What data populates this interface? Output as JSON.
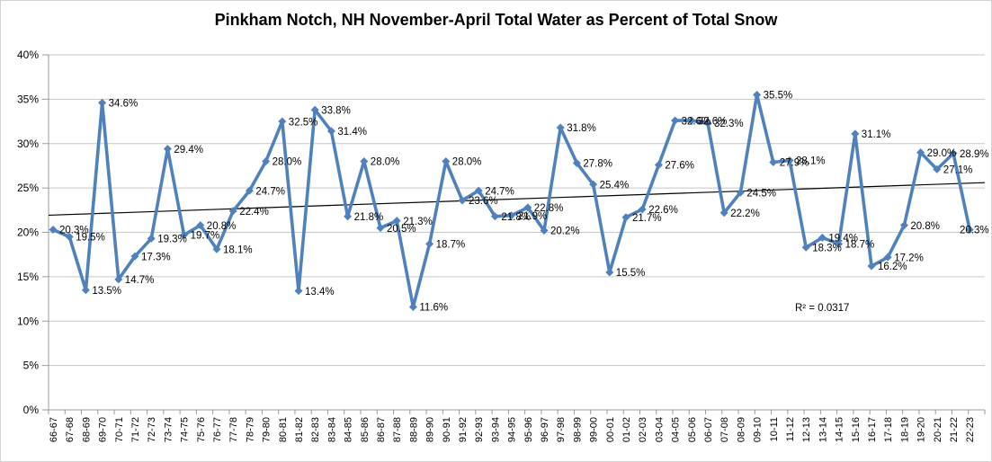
{
  "chart_data": {
    "type": "line",
    "title": "Pinkham Notch, NH November-April Total Water as Percent of Total Snow",
    "xlabel": "",
    "ylabel": "",
    "legend": "none",
    "grid": "horizontal",
    "ylim": [
      0,
      40
    ],
    "ytick_step": 5,
    "y_tick_labels": [
      "0%",
      "5%",
      "10%",
      "15%",
      "20%",
      "25%",
      "30%",
      "35%",
      "40%"
    ],
    "data_label_format": "one-decimal-percent",
    "categories": [
      "66-67",
      "67-68",
      "68-69",
      "69-70",
      "70-71",
      "71-72",
      "72-73",
      "73-74",
      "74-75",
      "75-76",
      "76-77",
      "77-78",
      "78-79",
      "79-80",
      "80-81",
      "81-82",
      "82-83",
      "83-84",
      "84-85",
      "85-86",
      "86-87",
      "87-88",
      "88-89",
      "89-90",
      "90-91",
      "91-92",
      "92-93",
      "93-94",
      "94-95",
      "95-96",
      "96-97",
      "97-98",
      "98-99",
      "99-00",
      "00-01",
      "01-02",
      "02-03",
      "03-04",
      "04-05",
      "05-06",
      "06-07",
      "07-08",
      "08-09",
      "09-10",
      "10-11",
      "11-12",
      "12-13",
      "13-14",
      "14-15",
      "15-16",
      "16-17",
      "17-18",
      "18-19",
      "19-20",
      "20-21",
      "21-22",
      "22-23"
    ],
    "values": [
      20.3,
      19.5,
      13.5,
      34.6,
      14.7,
      17.3,
      19.3,
      29.4,
      19.7,
      20.8,
      18.1,
      22.4,
      24.7,
      28.0,
      32.5,
      13.4,
      33.8,
      31.4,
      21.8,
      28.0,
      20.5,
      21.3,
      11.6,
      18.7,
      28.0,
      23.6,
      24.7,
      21.8,
      21.9,
      22.8,
      20.2,
      31.8,
      27.8,
      25.4,
      15.5,
      21.7,
      22.6,
      27.6,
      32.6,
      32.6,
      32.3,
      22.2,
      24.5,
      35.5,
      27.9,
      28.1,
      18.3,
      19.4,
      18.7,
      31.1,
      16.2,
      17.2,
      20.8,
      29.0,
      27.1,
      28.9,
      20.3
    ],
    "trendline": {
      "type": "linear",
      "annotation": "R² = 0.0317",
      "r_squared": 0.0317
    },
    "colors": {
      "series": "#4F81BD",
      "trendline": "#000000",
      "gridline": "#C6C6C6",
      "axis": "#9B9B9B",
      "background": "#FFFFFF",
      "border": "#D3D3D3"
    }
  }
}
